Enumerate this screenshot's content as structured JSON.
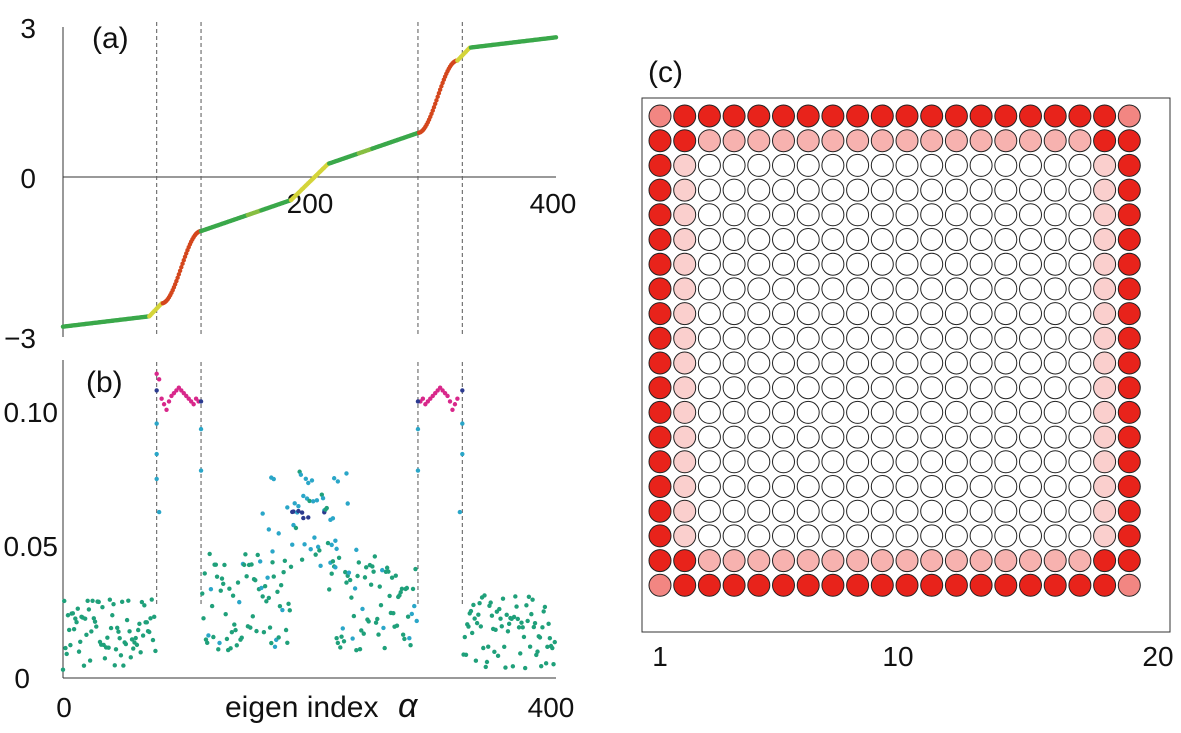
{
  "chart_data": [
    {
      "type": "scatter",
      "panel_label": "(a)",
      "description_series": "eigenvalues sorted by eigen index",
      "xlim": [
        0,
        400
      ],
      "ylim": [
        -3,
        3
      ],
      "x_ticks": [
        "200",
        "400"
      ],
      "x_tick_values": [
        200,
        400
      ],
      "y_ticks": [
        "3",
        "0",
        "−3"
      ],
      "y_tick_values": [
        3,
        0,
        -3
      ],
      "vlines": [
        76,
        112,
        288,
        324
      ],
      "plateaus": [
        {
          "from": 0,
          "to": 70,
          "y_start": -2.8,
          "y_end": -2.6
        },
        {
          "from": 70,
          "to": 80,
          "y_start": -2.6,
          "y_end": -2.35
        },
        {
          "from": 80,
          "to": 112,
          "y_start": -2.35,
          "y_end": -0.95
        },
        {
          "from": 112,
          "to": 185,
          "y_start": -0.95,
          "y_end": -0.35
        },
        {
          "from": 185,
          "to": 215,
          "y_start": -0.35,
          "y_end": 0.35
        },
        {
          "from": 215,
          "to": 288,
          "y_start": 0.35,
          "y_end": 0.95
        },
        {
          "from": 288,
          "to": 320,
          "y_start": 0.95,
          "y_end": 2.35
        },
        {
          "from": 320,
          "to": 330,
          "y_start": 2.35,
          "y_end": 2.6
        },
        {
          "from": 330,
          "to": 400,
          "y_start": 2.6,
          "y_end": 2.8
        }
      ],
      "colors": {
        "bulk": "#3aa84a",
        "transition": "#d4d43a",
        "edge": "#d4461c"
      }
    },
    {
      "type": "scatter",
      "panel_label": "(b)",
      "xlabel": "eigen index",
      "xlabel_symbol": "α",
      "xlim": [
        0,
        400
      ],
      "ylim": [
        0,
        0.115
      ],
      "x_ticks": [
        "0",
        "400"
      ],
      "x_tick_values": [
        0,
        400
      ],
      "y_ticks": [
        "0.10",
        "0.05",
        "0"
      ],
      "y_tick_values": [
        0.1,
        0.05,
        0
      ],
      "vlines": [
        76,
        112,
        288,
        324
      ],
      "edge_points_x": [
        76,
        78,
        80,
        82,
        84,
        86,
        88,
        90,
        92,
        94,
        96,
        98,
        100,
        102,
        104,
        106,
        108,
        110,
        290,
        292,
        294,
        296,
        298,
        300,
        302,
        304,
        306,
        308,
        310,
        312,
        314,
        316,
        318,
        320
      ],
      "edge_points_y": [
        0.11,
        0.108,
        0.101,
        0.099,
        0.097,
        0.1,
        0.102,
        0.103,
        0.104,
        0.105,
        0.104,
        0.103,
        0.102,
        0.101,
        0.1,
        0.099,
        0.101,
        0.1,
        0.1,
        0.101,
        0.099,
        0.1,
        0.101,
        0.102,
        0.103,
        0.104,
        0.105,
        0.104,
        0.103,
        0.102,
        0.1,
        0.097,
        0.099,
        0.101
      ],
      "colors": {
        "bulk": "#1fa07a",
        "mid": "#2aa6c8",
        "deep": "#2b3a8f",
        "edge": "#d8278a"
      }
    },
    {
      "type": "heatmap",
      "panel_label": "(c)",
      "rows": 20,
      "cols": 20,
      "x_ticks": [
        "1",
        "10",
        "20"
      ],
      "x_tick_values": [
        1,
        10,
        20
      ],
      "intensity_levels": {
        "corner": 0.55,
        "outer": 1.0,
        "second_ring_edge_rows": 0.35,
        "second_ring_side_cols": 0.22,
        "interior": 0.0
      },
      "colors": {
        "high": "#e8231b",
        "low": "#ffffff",
        "stroke": "#222222"
      }
    }
  ]
}
